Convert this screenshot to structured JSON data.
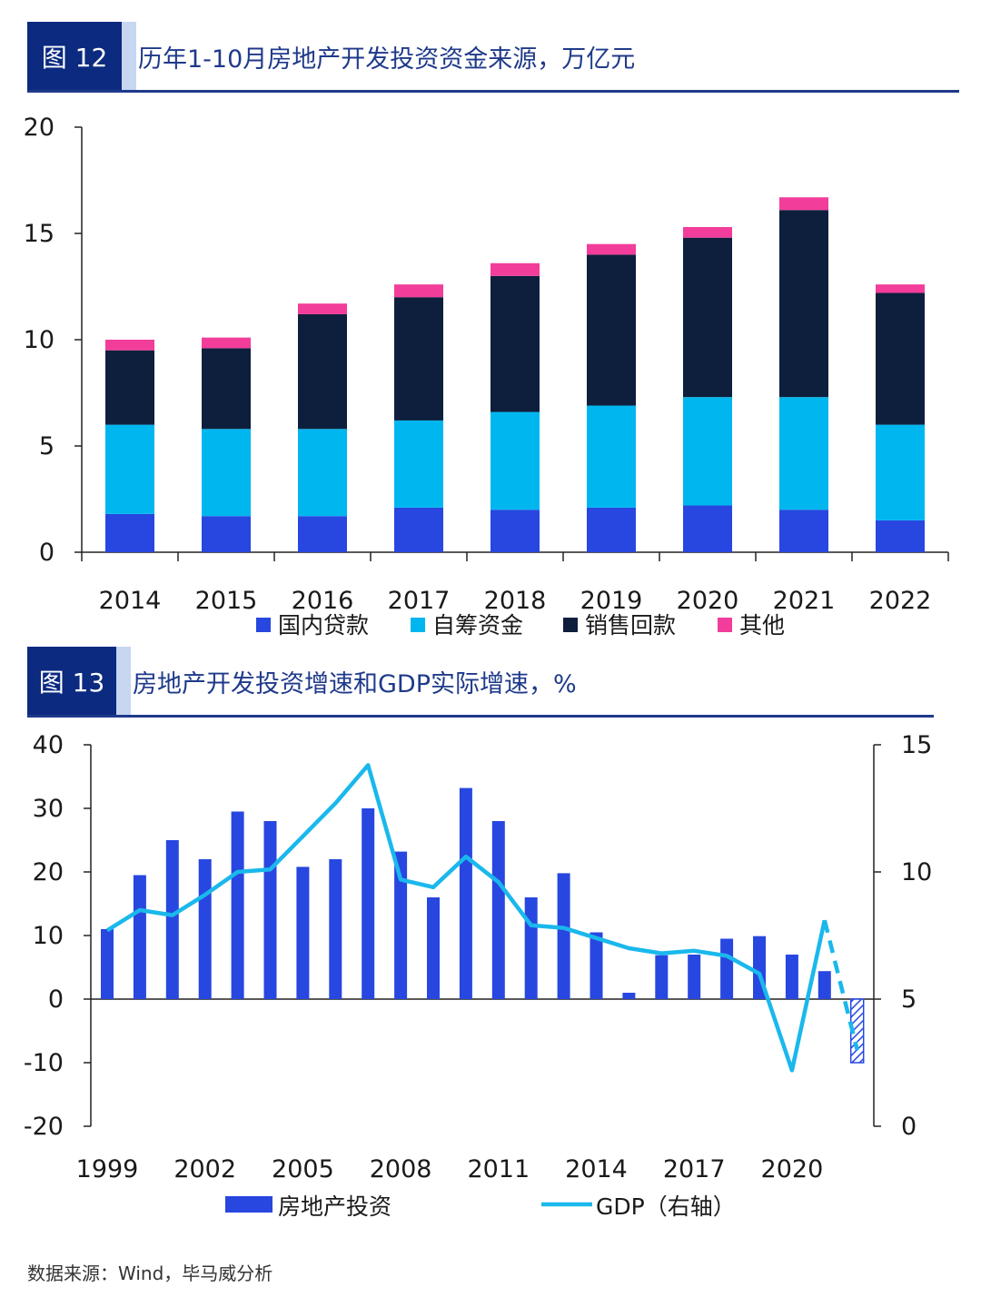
{
  "figures": [
    {
      "badge": "图 12",
      "title": "历年1-10月房地产开发投资资金来源，万亿元"
    },
    {
      "badge": "图 13",
      "title": "房地产开发投资增速和GDP实际增速，%"
    }
  ],
  "source_note": "数据来源：Wind，毕马威分析",
  "colors": {
    "domestic_loans": "#2747e0",
    "self_raised": "#00b6ef",
    "sales": "#0d1f3c",
    "other": "#f23d9a",
    "gdp": "#1ab8ec",
    "invest": "#2747e0",
    "header": "#0b2a80"
  },
  "chart_data": [
    {
      "type": "bar",
      "stacked": true,
      "title": "历年1-10月房地产开发投资资金来源，万亿元",
      "categories": [
        "2014",
        "2015",
        "2016",
        "2017",
        "2018",
        "2019",
        "2020",
        "2021",
        "2022"
      ],
      "ylim": [
        0,
        20
      ],
      "yticks": [
        "0",
        "5",
        "10",
        "15",
        "20"
      ],
      "legend_position": "bottom",
      "series": [
        {
          "name": "国内贷款",
          "values": [
            1.8,
            1.7,
            1.7,
            2.1,
            2.0,
            2.1,
            2.2,
            2.0,
            1.5
          ]
        },
        {
          "name": "自筹资金",
          "values": [
            4.2,
            4.1,
            4.1,
            4.1,
            4.6,
            4.8,
            5.1,
            5.3,
            4.5
          ]
        },
        {
          "name": "销售回款",
          "values": [
            3.5,
            3.8,
            5.4,
            5.8,
            6.4,
            7.1,
            7.5,
            8.8,
            6.2
          ]
        },
        {
          "name": "其他",
          "values": [
            0.5,
            0.5,
            0.5,
            0.6,
            0.6,
            0.5,
            0.5,
            0.6,
            0.4
          ]
        }
      ]
    },
    {
      "type": "bar+line",
      "title": "房地产开发投资增速和GDP实际增速，%",
      "x": [
        "1999",
        "2000",
        "2001",
        "2002",
        "2003",
        "2004",
        "2005",
        "2006",
        "2007",
        "2008",
        "2009",
        "2010",
        "2011",
        "2012",
        "2013",
        "2014",
        "2015",
        "2016",
        "2017",
        "2018",
        "2019",
        "2020",
        "2021",
        "2022"
      ],
      "xticks": [
        "1999",
        "2002",
        "2005",
        "2008",
        "2011",
        "2014",
        "2017",
        "2020"
      ],
      "ylim_left": [
        -20,
        40
      ],
      "yticks_left": [
        "-20",
        "-10",
        "0",
        "10",
        "20",
        "30",
        "40"
      ],
      "ylim_right": [
        0,
        15
      ],
      "yticks_right": [
        "0",
        "5",
        "10",
        "15"
      ],
      "legend_position": "bottom",
      "series": [
        {
          "name": "房地产投资",
          "type": "bar",
          "axis": "left",
          "values": [
            11,
            19.5,
            25,
            22,
            29.5,
            28,
            20.8,
            22,
            30,
            23.2,
            16,
            33.2,
            28,
            16,
            19.8,
            10.5,
            1,
            6.9,
            7,
            9.5,
            9.9,
            7,
            4.4,
            -10
          ],
          "hatched_last": true
        },
        {
          "name": "GDP（右轴）",
          "type": "line",
          "axis": "right",
          "values": [
            7.7,
            8.5,
            8.3,
            9.1,
            10.0,
            10.1,
            11.4,
            12.7,
            14.2,
            9.7,
            9.4,
            10.6,
            9.6,
            7.9,
            7.8,
            7.4,
            7.0,
            6.8,
            6.9,
            6.7,
            6.0,
            2.2,
            8.1,
            3.0
          ],
          "dashed_from_index": 22
        }
      ]
    }
  ]
}
